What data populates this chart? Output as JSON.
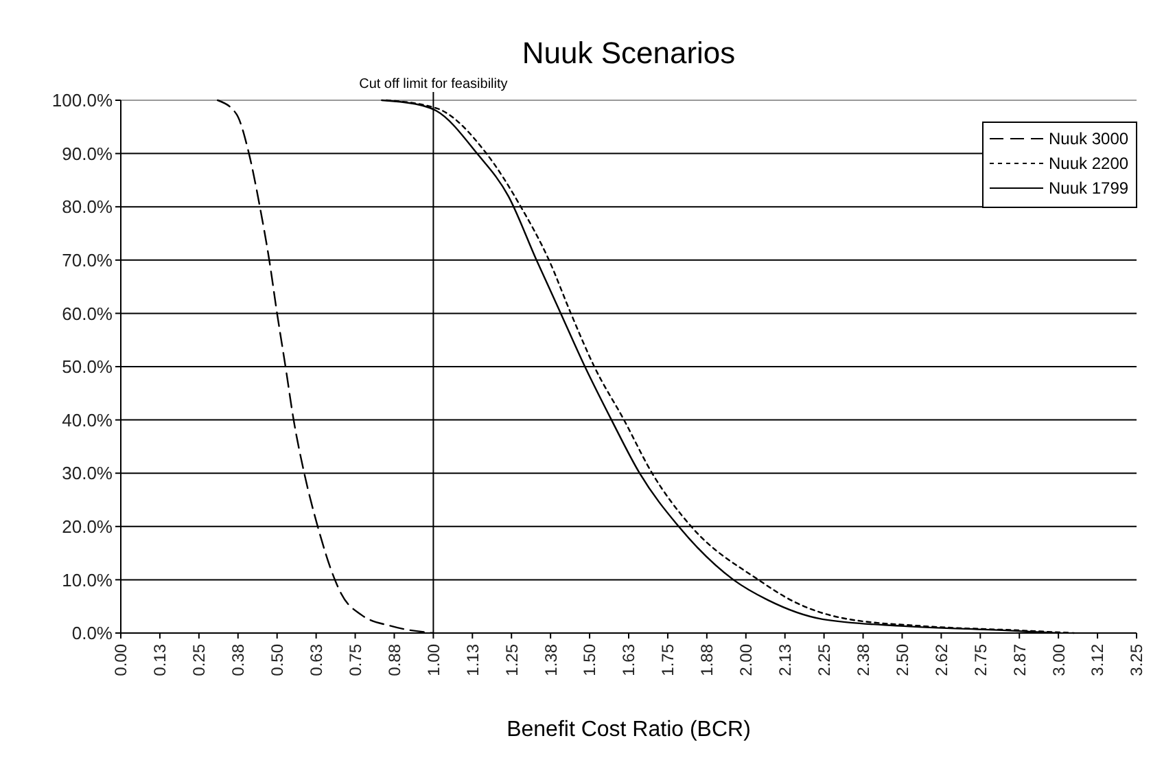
{
  "chart_data": {
    "type": "line",
    "title": "Nuuk Scenarios",
    "xlabel": "Benefit Cost Ratio (BCR)",
    "xlim": [
      0,
      3.25
    ],
    "xticks": [
      {
        "value": 0,
        "label": "0.00"
      },
      {
        "value": 0.125,
        "label": "0.13"
      },
      {
        "value": 0.25,
        "label": "0.25"
      },
      {
        "value": 0.375,
        "label": "0.38"
      },
      {
        "value": 0.5,
        "label": "0.50"
      },
      {
        "value": 0.625,
        "label": "0.63"
      },
      {
        "value": 0.75,
        "label": "0.75"
      },
      {
        "value": 0.875,
        "label": "0.88"
      },
      {
        "value": 1,
        "label": "1.00"
      },
      {
        "value": 1.125,
        "label": "1.13"
      },
      {
        "value": 1.25,
        "label": "1.25"
      },
      {
        "value": 1.375,
        "label": "1.38"
      },
      {
        "value": 1.5,
        "label": "1.50"
      },
      {
        "value": 1.625,
        "label": "1.63"
      },
      {
        "value": 1.75,
        "label": "1.75"
      },
      {
        "value": 1.875,
        "label": "1.88"
      },
      {
        "value": 2,
        "label": "2.00"
      },
      {
        "value": 2.125,
        "label": "2.13"
      },
      {
        "value": 2.25,
        "label": "2.25"
      },
      {
        "value": 2.375,
        "label": "2.38"
      },
      {
        "value": 2.5,
        "label": "2.50"
      },
      {
        "value": 2.625,
        "label": "2.62"
      },
      {
        "value": 2.75,
        "label": "2.75"
      },
      {
        "value": 2.875,
        "label": "2.87"
      },
      {
        "value": 3,
        "label": "3.00"
      },
      {
        "value": 3.125,
        "label": "3.12"
      },
      {
        "value": 3.25,
        "label": "3.25"
      }
    ],
    "ylim": [
      0,
      100
    ],
    "yticks": [
      {
        "value": 0,
        "label": "0.0%"
      },
      {
        "value": 10,
        "label": "10.0%"
      },
      {
        "value": 20,
        "label": "20.0%"
      },
      {
        "value": 30,
        "label": "30.0%"
      },
      {
        "value": 40,
        "label": "40.0%"
      },
      {
        "value": 50,
        "label": "50.0%"
      },
      {
        "value": 60,
        "label": "60.0%"
      },
      {
        "value": 70,
        "label": "70.0%"
      },
      {
        "value": 80,
        "label": "80.0%"
      },
      {
        "value": 90,
        "label": "90.0%"
      },
      {
        "value": 100,
        "label": "100.0%"
      }
    ],
    "grid": "y",
    "legend": "top right",
    "marker": "none",
    "ref_lines": [
      {
        "axis": "x",
        "value": 1,
        "label": "Cut off limit for feasibility",
        "color": "#000000"
      }
    ],
    "series": [
      {
        "name": "Nuuk 3000",
        "color": "#000000",
        "line_style": "dashed",
        "x": [
          0.31,
          0.37,
          0.41,
          0.445,
          0.475,
          0.5,
          0.527,
          0.553,
          0.587,
          0.63,
          0.683,
          0.705,
          0.77,
          0.866,
          1.0
        ],
        "values": [
          100,
          97.4,
          90,
          80,
          70,
          60,
          50,
          40,
          30,
          20,
          10.3,
          7.4,
          3.4,
          1.3,
          0
        ]
      },
      {
        "name": "Nuuk 2200",
        "color": "#000000",
        "line_style": "dotted",
        "x": [
          0.85,
          1.01,
          1.17,
          1.28,
          1.37,
          1.44,
          1.515,
          1.61,
          1.7,
          1.825,
          2.04,
          2.15,
          2.31,
          2.57,
          2.875,
          3.05
        ],
        "values": [
          100,
          98.5,
          90,
          80,
          70,
          60,
          50,
          40,
          30,
          20,
          10,
          6,
          2.8,
          1.3,
          0.5,
          0
        ]
      },
      {
        "name": "Nuuk 1799",
        "color": "#000000",
        "line_style": "solid",
        "x": [
          0.835,
          0.965,
          1.01,
          1.14,
          1.24,
          1.33,
          1.4,
          1.485,
          1.57,
          1.66,
          1.785,
          1.96,
          2.07,
          2.245,
          2.505,
          2.83,
          3.0
        ],
        "values": [
          100,
          99,
          98,
          90,
          82,
          70,
          61,
          50,
          40,
          30,
          20,
          10,
          6.2,
          2.6,
          1.3,
          0.5,
          0
        ]
      }
    ]
  }
}
